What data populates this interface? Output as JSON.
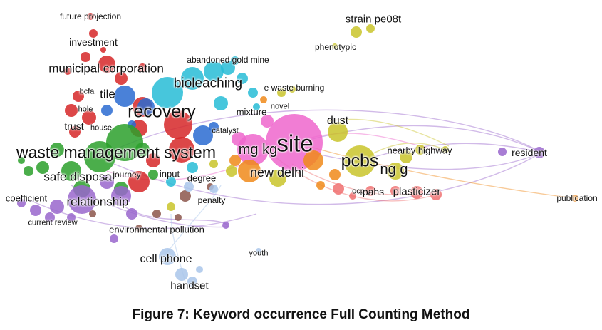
{
  "caption": "Figure 7:  Keyword occurrence Full Counting Method",
  "keywords": {
    "future_projection": "future projection",
    "investment": "investment",
    "municipal_corporation": "municipal corporation",
    "abandoned_gold_mine": "abandoned gold mine",
    "bioleaching": "bioleaching",
    "tile": "tile",
    "bcfa": "bcfa",
    "hole": "hole",
    "recovery": "recovery",
    "trust": "trust",
    "house": "house",
    "e_waste_burning": "e waste burning",
    "mixture": "mixture",
    "novel": "novel",
    "catalyst": "catalyst",
    "site": "site",
    "mg_kg": "mg kg",
    "dust": "dust",
    "strain_pe08t": "strain pe08t",
    "phenotypic": "phenotypic",
    "waste_management_system": "waste management system",
    "pcbs": "pcbs",
    "ng_g": "ng g",
    "nearby_highway": "nearby highway",
    "resident": "resident",
    "new_delhi": "new delhi",
    "safe_disposal": "safe disposal",
    "journey": "journey",
    "input": "input",
    "degree": "degree",
    "ocp": "ocp",
    "pahs": "pahs",
    "plasticizer": "plasticizer",
    "publication": "publication",
    "coefficient": "coefficient",
    "relationship": "relationship",
    "penalty": "penalty",
    "current_review": "current review",
    "environmental_pollution": "environmental pollution",
    "youth": "youth",
    "cell_phone": "cell phone",
    "handset": "handset"
  },
  "colors": {
    "red": "#d62728",
    "green": "#2ca02c",
    "blue": "#2a6bd1",
    "cyan": "#27bcd6",
    "pink": "#ee66cc",
    "yellow": "#c9c42a",
    "orange": "#f08a1a",
    "purple": "#9966cc",
    "brown": "#8c564b",
    "lightblue": "#a9c5ea",
    "salmon": "#f07070"
  }
}
